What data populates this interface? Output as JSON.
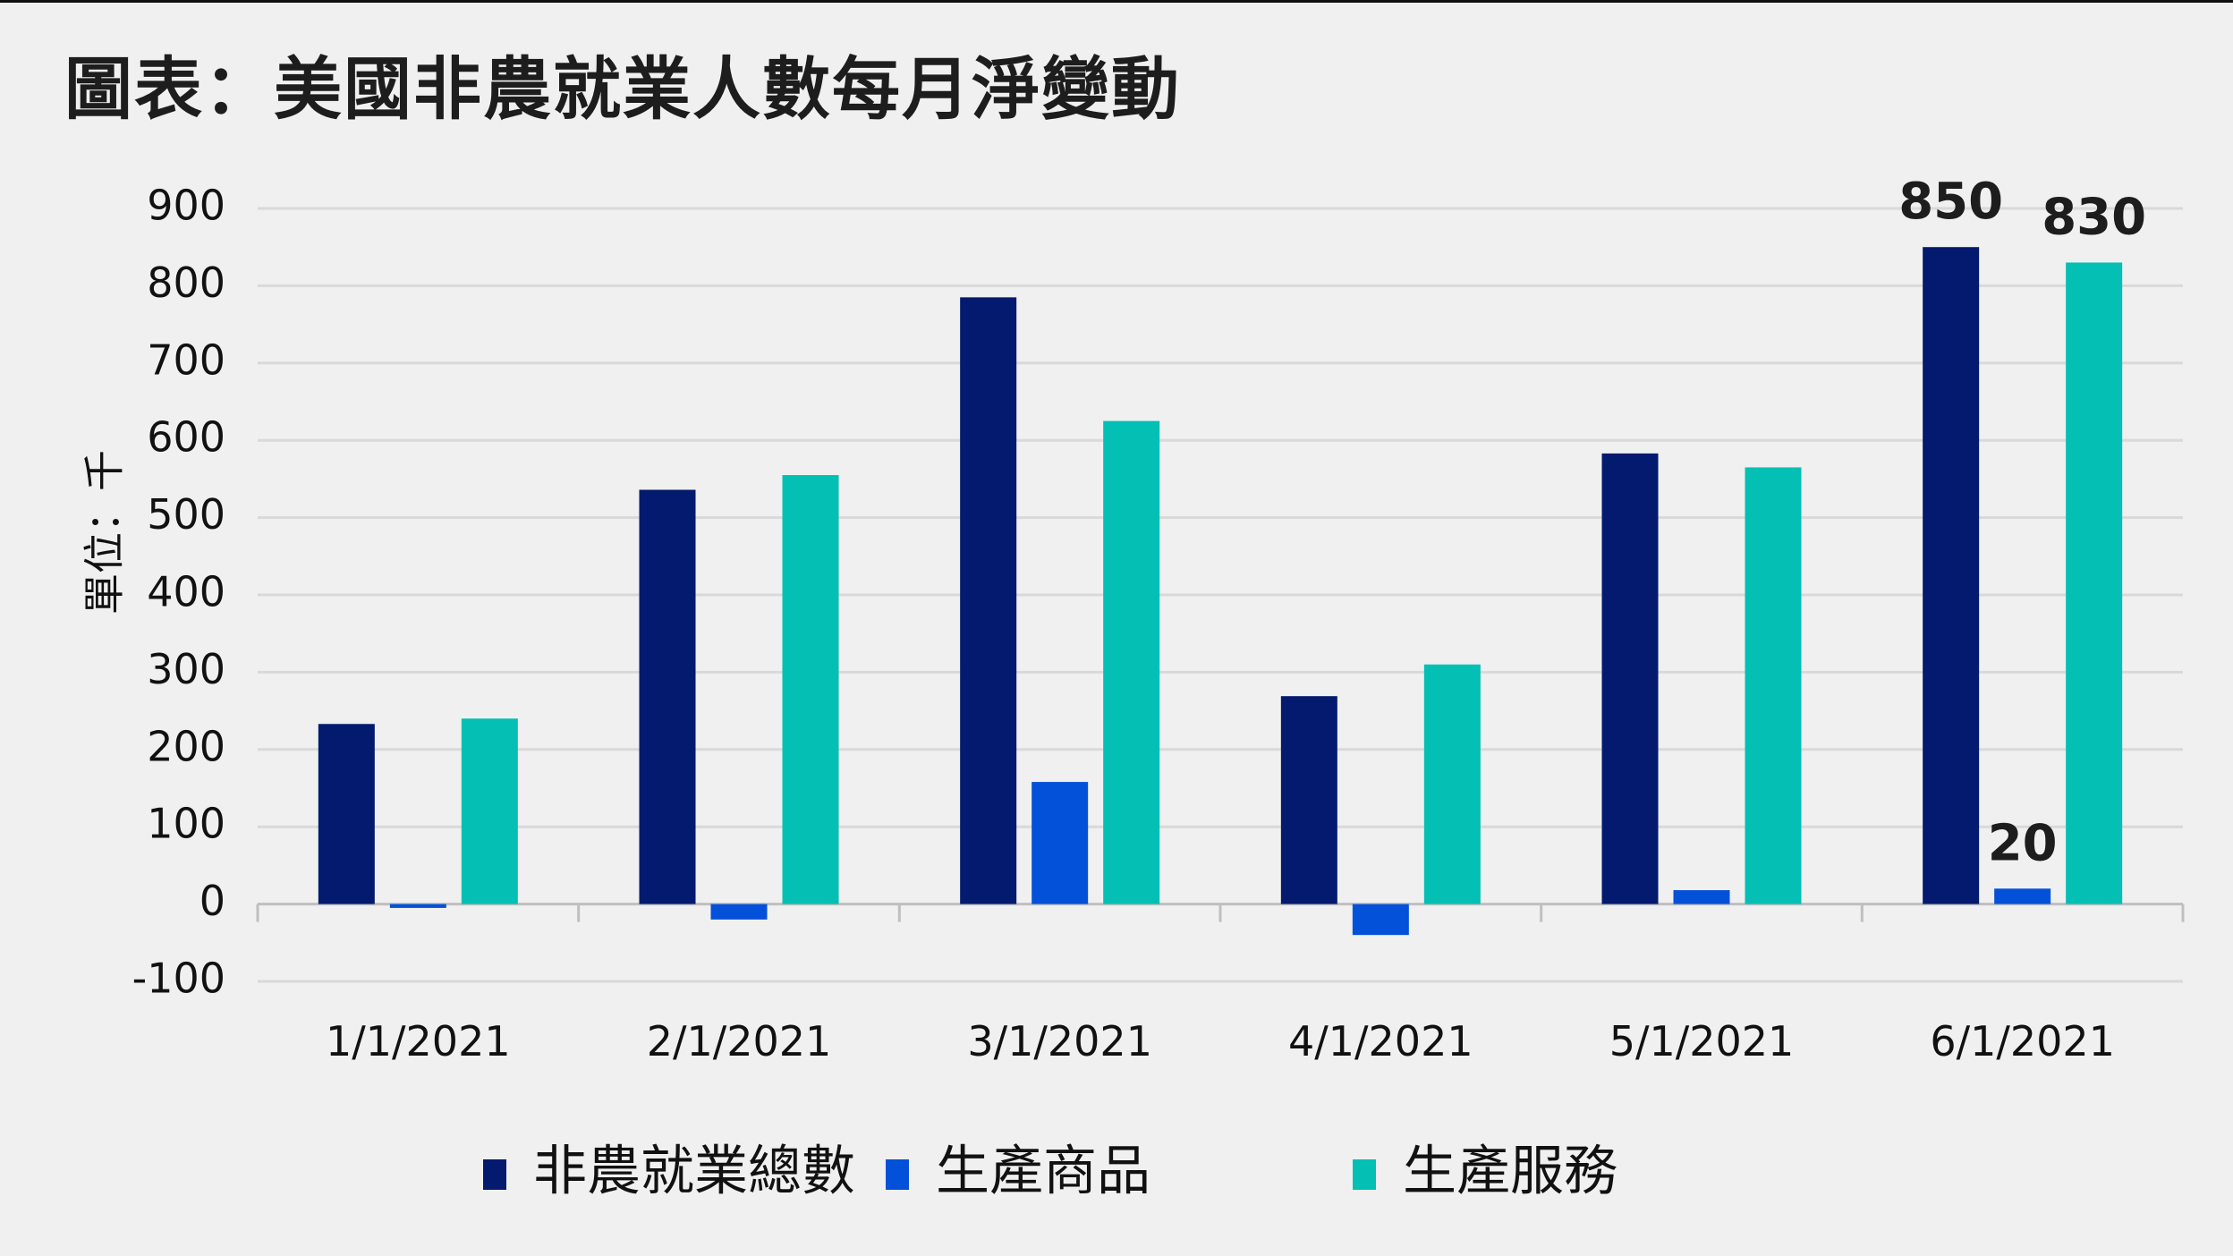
{
  "title": "圖表：美國非農就業人數每月淨變動",
  "colors": {
    "series": [
      "#031a6e",
      "#0451d9",
      "#03bfb4"
    ],
    "grid": "#d9d9d9",
    "axis": "#bfbfbf",
    "background": "#f0f0f0"
  },
  "chart_data": {
    "type": "bar",
    "title": "圖表：美國非農就業人數每月淨變動",
    "xlabel": "",
    "ylabel": "單位：千",
    "ylim": [
      -100,
      900
    ],
    "yticks": [
      900,
      800,
      700,
      600,
      500,
      400,
      300,
      200,
      100,
      0,
      -100
    ],
    "grid": true,
    "legend_position": "bottom",
    "categories": [
      "1/1/2021",
      "2/1/2021",
      "3/1/2021",
      "4/1/2021",
      "5/1/2021",
      "6/1/2021"
    ],
    "series": [
      {
        "name": "非農就業總數",
        "values": [
          233,
          536,
          785,
          269,
          583,
          850
        ]
      },
      {
        "name": "生產商品",
        "values": [
          -5,
          -20,
          158,
          -40,
          18,
          20
        ]
      },
      {
        "name": "生產服務",
        "values": [
          240,
          555,
          625,
          310,
          565,
          830
        ]
      }
    ],
    "annotations": [
      {
        "series": 0,
        "category": 5,
        "text": "850"
      },
      {
        "series": 1,
        "category": 5,
        "text": "20"
      },
      {
        "series": 2,
        "category": 5,
        "text": "830"
      }
    ]
  }
}
